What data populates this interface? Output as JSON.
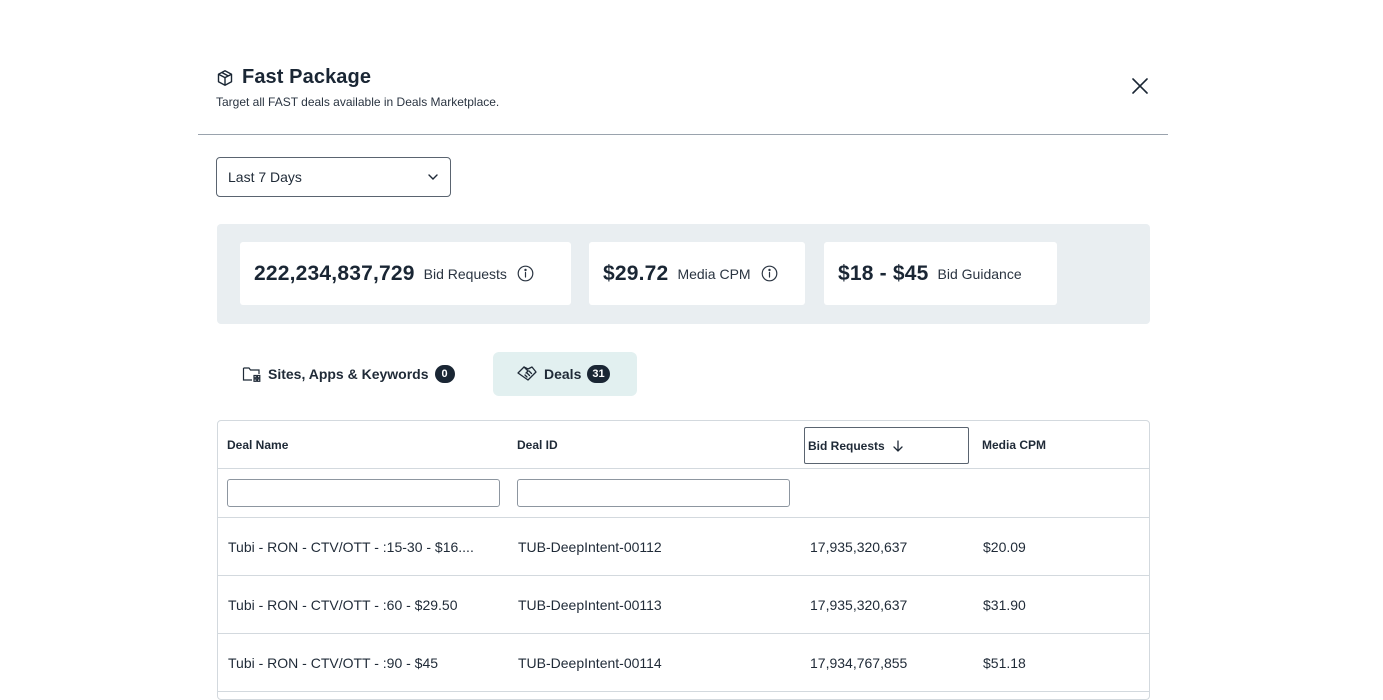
{
  "modal": {
    "title": "Fast Package",
    "subtitle": "Target all FAST deals available in Deals Marketplace."
  },
  "date_range": {
    "selected": "Last 7 Days"
  },
  "stats": [
    {
      "value": "222,234,837,729",
      "label": "Bid Requests",
      "has_info": true
    },
    {
      "value": "$29.72",
      "label": "Media CPM",
      "has_info": true
    },
    {
      "value": "$18 - $45",
      "label": "Bid Guidance",
      "has_info": false
    }
  ],
  "tabs": [
    {
      "label": "Sites, Apps & Keywords",
      "count": "0",
      "active": false,
      "icon": "folder-grid-icon"
    },
    {
      "label": "Deals",
      "count": "31",
      "active": true,
      "icon": "handshake-icon"
    }
  ],
  "table": {
    "columns": [
      "Deal Name",
      "Deal ID",
      "Bid Requests",
      "Media CPM"
    ],
    "sorted_column": "Bid Requests",
    "sort_direction": "desc",
    "filters": {
      "deal_name": "",
      "deal_id": ""
    },
    "rows": [
      {
        "deal_name": "Tubi - RON - CTV/OTT - :15-30 - $16....",
        "deal_id": "TUB-DeepIntent-00112",
        "bid_requests": "17,935,320,637",
        "media_cpm": "$20.09"
      },
      {
        "deal_name": "Tubi - RON - CTV/OTT - :60 - $29.50",
        "deal_id": "TUB-DeepIntent-00113",
        "bid_requests": "17,935,320,637",
        "media_cpm": "$31.90"
      },
      {
        "deal_name": "Tubi - RON - CTV/OTT - :90 - $45",
        "deal_id": "TUB-DeepIntent-00114",
        "bid_requests": "17,934,767,855",
        "media_cpm": "$51.18"
      }
    ]
  },
  "colors": {
    "panel_bg": "#e9eef1",
    "active_tab_bg": "#e2f0f0",
    "badge_bg": "#1a2634",
    "border": "#d3d9de"
  }
}
